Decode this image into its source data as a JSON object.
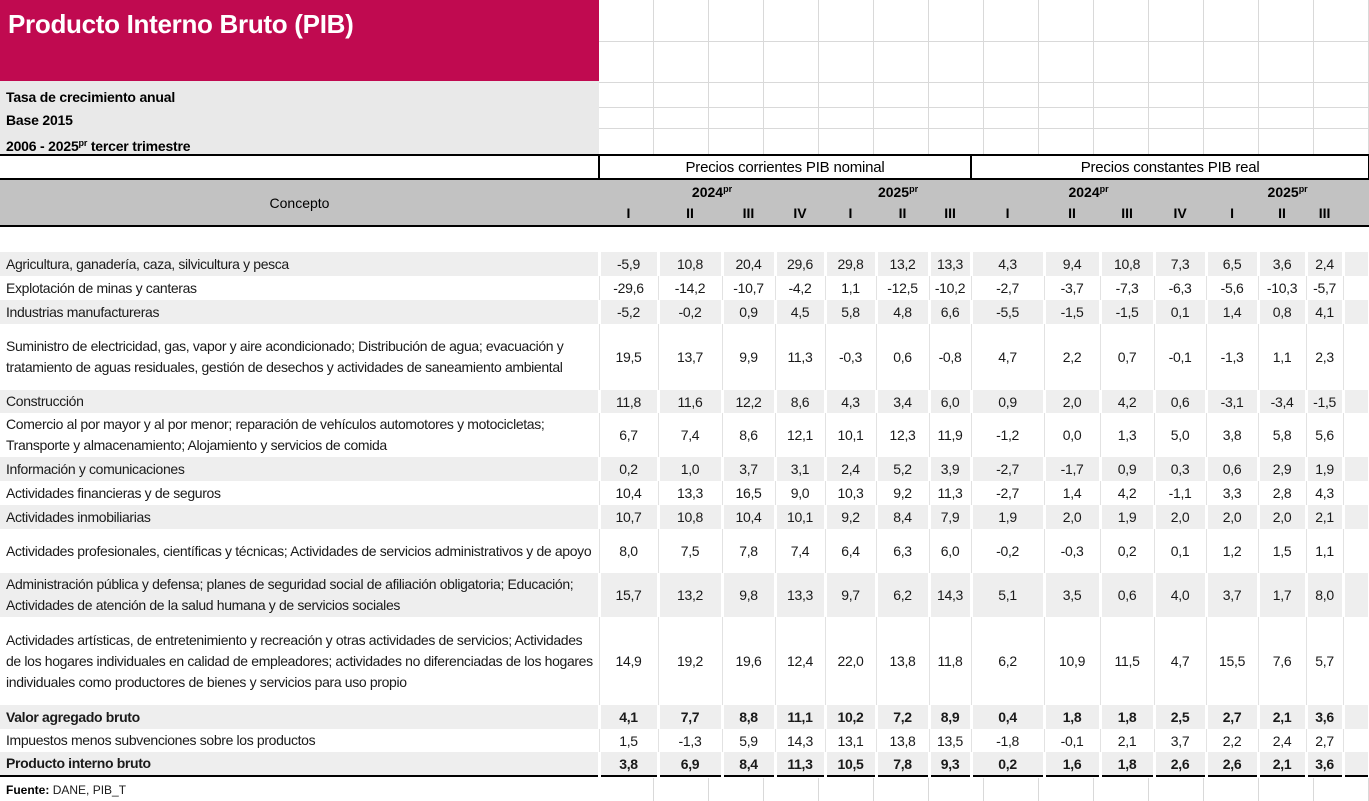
{
  "header": {
    "title": "Producto Interno Bruto (PIB)",
    "lines": [
      "Tasa de crecimiento anual",
      "Base 2015"
    ],
    "period": {
      "prefix": "2006 - 2025",
      "sup": "pr",
      "suffix": " tercer trimestre"
    }
  },
  "colors": {
    "accent_crimson": "#c00a50",
    "header_gray": "#c2c2c2",
    "subtitle_gray": "#e9e9e9",
    "row_stripe_gray": "#eeeeee",
    "highlight_red": "#e8112d",
    "gridline_gray": "#d9d9d9"
  },
  "chart_data": {
    "type": "table",
    "title": "Producto Interno Bruto (PIB)",
    "subtitle": [
      "Tasa de crecimiento anual",
      "Base 2015",
      "2006 - 2025pr tercer trimestre"
    ],
    "concept_header": "Concepto",
    "column_groups": [
      {
        "label": "Precios corrientes PIB nominal",
        "years": [
          {
            "label": "2024",
            "sup": "pr",
            "quarters": [
              "I",
              "II",
              "III",
              "IV"
            ]
          },
          {
            "label": "2025",
            "sup": "pr",
            "quarters": [
              "I",
              "II",
              "III"
            ]
          }
        ]
      },
      {
        "label": "Precios constantes PIB real",
        "years": [
          {
            "label": "2024",
            "sup": "pr",
            "quarters": [
              "I",
              "II",
              "III",
              "IV"
            ]
          },
          {
            "label": "2025",
            "sup": "pr",
            "quarters": [
              "I",
              "II",
              "III"
            ]
          }
        ]
      }
    ],
    "rows": [
      {
        "label": "Agricultura, ganadería, caza, silvicultura y pesca",
        "values": [
          "-5,9",
          "10,8",
          "20,4",
          "29,6",
          "29,8",
          "13,2",
          "13,3",
          "4,3",
          "9,4",
          "10,8",
          "7,3",
          "6,5",
          "3,6",
          "2,4"
        ],
        "bold": false,
        "red_indices": [
          13
        ]
      },
      {
        "label": "Explotación de minas y canteras",
        "values": [
          "-29,6",
          "-14,2",
          "-10,7",
          "-4,2",
          "1,1",
          "-12,5",
          "-10,2",
          "-2,7",
          "-3,7",
          "-7,3",
          "-6,3",
          "-5,6",
          "-10,3",
          "-5,7"
        ],
        "bold": false,
        "red_indices": []
      },
      {
        "label": "Industrias manufactureras",
        "values": [
          "-5,2",
          "-0,2",
          "0,9",
          "4,5",
          "5,8",
          "4,8",
          "6,6",
          "-5,5",
          "-1,5",
          "-1,5",
          "0,1",
          "1,4",
          "0,8",
          "4,1"
        ],
        "bold": false,
        "red_indices": [
          13
        ]
      },
      {
        "label": "Suministro de electricidad, gas, vapor y aire acondicionado; Distribución de agua; evacuación y tratamiento de aguas residuales, gestión de desechos y actividades de saneamiento ambiental",
        "values": [
          "19,5",
          "13,7",
          "9,9",
          "11,3",
          "-0,3",
          "0,6",
          "-0,8",
          "4,7",
          "2,2",
          "0,7",
          "-0,1",
          "-1,3",
          "1,1",
          "2,3"
        ],
        "bold": false,
        "red_indices": []
      },
      {
        "label": "Construcción",
        "values": [
          "11,8",
          "11,6",
          "12,2",
          "8,6",
          "4,3",
          "3,4",
          "6,0",
          "0,9",
          "2,0",
          "4,2",
          "0,6",
          "-3,1",
          "-3,4",
          "-1,5"
        ],
        "bold": false,
        "red_indices": []
      },
      {
        "label": "Comercio al por mayor y al por menor; reparación de vehículos automotores y motocicletas; Transporte y almacenamiento; Alojamiento y servicios de comida",
        "values": [
          "6,7",
          "7,4",
          "8,6",
          "12,1",
          "10,1",
          "12,3",
          "11,9",
          "-1,2",
          "0,0",
          "1,3",
          "5,0",
          "3,8",
          "5,8",
          "5,6"
        ],
        "bold": false,
        "red_indices": [
          13
        ]
      },
      {
        "label": "Información y comunicaciones",
        "values": [
          "0,2",
          "1,0",
          "3,7",
          "3,1",
          "2,4",
          "5,2",
          "3,9",
          "-2,7",
          "-1,7",
          "0,9",
          "0,3",
          "0,6",
          "2,9",
          "1,9"
        ],
        "bold": false,
        "red_indices": []
      },
      {
        "label": "Actividades financieras y de seguros",
        "values": [
          "10,4",
          "13,3",
          "16,5",
          "9,0",
          "10,3",
          "9,2",
          "11,3",
          "-2,7",
          "1,4",
          "4,2",
          "-1,1",
          "3,3",
          "2,8",
          "4,3"
        ],
        "bold": false,
        "red_indices": [
          13
        ]
      },
      {
        "label": "Actividades inmobiliarias",
        "values": [
          "10,7",
          "10,8",
          "10,4",
          "10,1",
          "9,2",
          "8,4",
          "7,9",
          "1,9",
          "2,0",
          "1,9",
          "2,0",
          "2,0",
          "2,0",
          "2,1"
        ],
        "bold": false,
        "red_indices": []
      },
      {
        "label": "Actividades profesionales, científicas y técnicas; Actividades de servicios administrativos y de apoyo",
        "values": [
          "8,0",
          "7,5",
          "7,8",
          "7,4",
          "6,4",
          "6,3",
          "6,0",
          "-0,2",
          "-0,3",
          "0,2",
          "0,1",
          "1,2",
          "1,5",
          "1,1"
        ],
        "bold": false,
        "red_indices": []
      },
      {
        "label": "Administración pública y defensa; planes de seguridad social de afiliación obligatoria; Educación; Actividades de atención de la salud humana y de servicios sociales",
        "values": [
          "15,7",
          "13,2",
          "9,8",
          "13,3",
          "9,7",
          "6,2",
          "14,3",
          "5,1",
          "3,5",
          "0,6",
          "4,0",
          "3,7",
          "1,7",
          "8,0"
        ],
        "bold": false,
        "red_indices": [
          13
        ]
      },
      {
        "label": "Actividades artísticas, de entretenimiento y recreación y otras actividades de servicios; Actividades de los hogares individuales en calidad de empleadores; actividades no diferenciadas de los hogares individuales como productores de bienes y servicios para uso propio",
        "values": [
          "14,9",
          "19,2",
          "19,6",
          "12,4",
          "22,0",
          "13,8",
          "11,8",
          "6,2",
          "10,9",
          "11,5",
          "4,7",
          "15,5",
          "7,6",
          "5,7"
        ],
        "bold": false,
        "red_indices": []
      },
      {
        "label": "Valor agregado bruto",
        "values": [
          "4,1",
          "7,7",
          "8,8",
          "11,1",
          "10,2",
          "7,2",
          "8,9",
          "0,4",
          "1,8",
          "1,8",
          "2,5",
          "2,7",
          "2,1",
          "3,6"
        ],
        "bold": true,
        "red_indices": []
      },
      {
        "label": "Impuestos menos subvenciones sobre los productos",
        "values": [
          "1,5",
          "-1,3",
          "5,9",
          "14,3",
          "13,1",
          "13,8",
          "13,5",
          "-1,8",
          "-0,1",
          "2,1",
          "3,7",
          "2,2",
          "2,4",
          "2,7"
        ],
        "bold": false,
        "red_indices": []
      },
      {
        "label": "Producto interno bruto",
        "values": [
          "3,8",
          "6,9",
          "8,4",
          "11,3",
          "10,5",
          "7,8",
          "9,3",
          "0,2",
          "1,6",
          "1,8",
          "2,6",
          "2,6",
          "2,1",
          "3,6"
        ],
        "bold": true,
        "red_indices": []
      }
    ]
  },
  "footer": {
    "source_label": "Fuente:",
    "source_value": "DANE, PIB_T"
  }
}
